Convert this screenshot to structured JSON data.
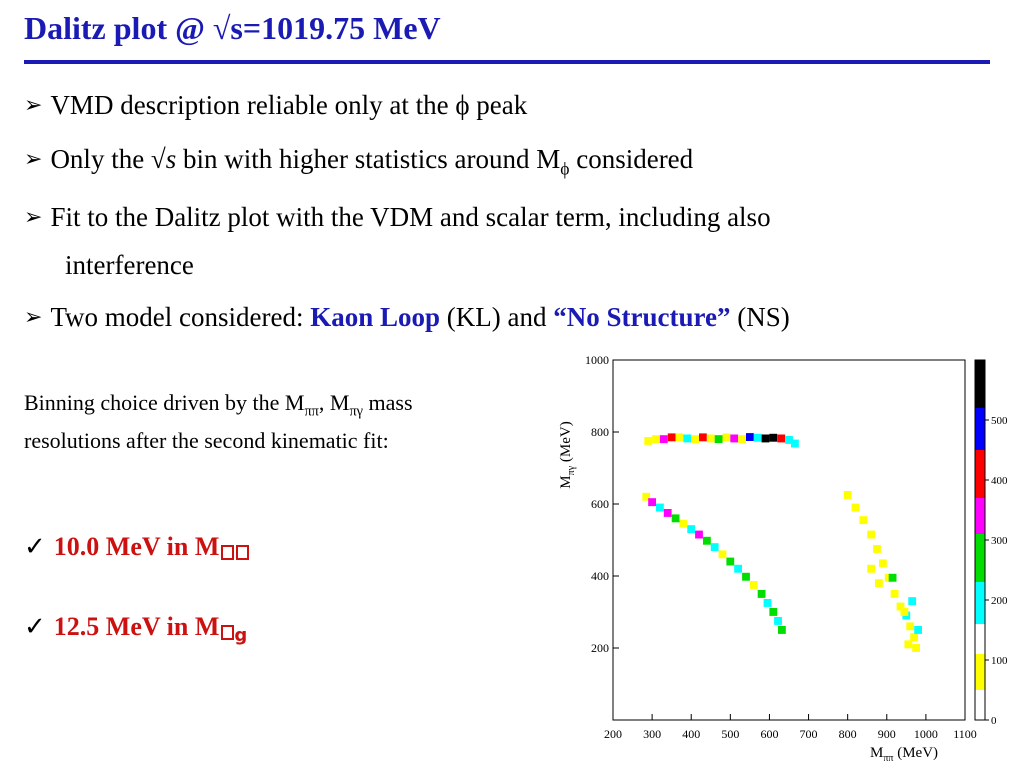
{
  "slide": {
    "title": "Dalitz plot @ √s=1019.75 MeV",
    "bullets": [
      {
        "text": "VMD description reliable only at the ϕ peak"
      },
      {
        "pre": "Only the √",
        "s": "s",
        "mid": " bin with higher statistics around M",
        "sub": "ϕ",
        "post": " considered"
      },
      {
        "line1": "Fit to the Dalitz plot with the VDM and scalar term, including also",
        "line2": "interference"
      },
      {
        "pre": "Two model considered: ",
        "kl": "Kaon Loop",
        "mid": " (KL) and ",
        "ns": "“No Structure”",
        "post": " (NS)"
      }
    ],
    "arrow_glyph": "➢",
    "note": {
      "pre": "Binning choice driven by the M",
      "sub1": "ππ",
      "mid": ", M",
      "sub2": "πγ",
      "post": " mass resolutions after the second kinematic fit:"
    },
    "checks": [
      {
        "mark": "✓",
        "text": "10.0 MeV in M",
        "sub_boxes": 2,
        "tail": ""
      },
      {
        "mark": "✓",
        "text": "12.5 MeV in M",
        "sub_boxes": 1,
        "tail": "g"
      }
    ],
    "colors": {
      "title": "#1a1ab4",
      "highlight": "#1a1ab4",
      "check_value": "#cc1111"
    }
  },
  "chart_data": {
    "type": "heatmap",
    "xlabel_main": "M",
    "xlabel_sub": "ππ",
    "xlabel_unit": " (MeV)",
    "ylabel_main": "M",
    "ylabel_sub": "πγ",
    "ylabel_unit": " (MeV)",
    "xlim": [
      200,
      1100
    ],
    "ylim": [
      0,
      1000
    ],
    "xticks": [
      200,
      300,
      400,
      500,
      600,
      700,
      800,
      900,
      1000,
      1100
    ],
    "yticks": [
      200,
      400,
      600,
      800,
      1000
    ],
    "color_scale": {
      "min": 0,
      "max": 600,
      "ticks": [
        0,
        100,
        200,
        300,
        400,
        500
      ],
      "bands": [
        {
          "from": 0,
          "to": 50,
          "color": "#ffffff"
        },
        {
          "from": 50,
          "to": 110,
          "color": "#ffff00"
        },
        {
          "from": 110,
          "to": 160,
          "color": "#ffffff"
        },
        {
          "from": 160,
          "to": 230,
          "color": "#00ffff"
        },
        {
          "from": 230,
          "to": 310,
          "color": "#00dd00"
        },
        {
          "from": 310,
          "to": 370,
          "color": "#ff00ff"
        },
        {
          "from": 370,
          "to": 450,
          "color": "#ff0000"
        },
        {
          "from": 450,
          "to": 520,
          "color": "#0000ff"
        },
        {
          "from": 520,
          "to": 600,
          "color": "#000000"
        }
      ]
    },
    "regions": [
      {
        "name": "horizontal band",
        "points": [
          [
            290,
            775,
            "#ffff00"
          ],
          [
            310,
            780,
            "#ffff00"
          ],
          [
            330,
            780,
            "#ff00ff"
          ],
          [
            350,
            785,
            "#ff0000"
          ],
          [
            370,
            785,
            "#ffff00"
          ],
          [
            390,
            782,
            "#00ffff"
          ],
          [
            410,
            780,
            "#ffff00"
          ],
          [
            430,
            785,
            "#ff0000"
          ],
          [
            450,
            782,
            "#ffff00"
          ],
          [
            470,
            780,
            "#00dd00"
          ],
          [
            490,
            785,
            "#ffff00"
          ],
          [
            510,
            782,
            "#ff00ff"
          ],
          [
            530,
            780,
            "#ffff00"
          ],
          [
            550,
            786,
            "#0000ff"
          ],
          [
            570,
            784,
            "#00ffff"
          ],
          [
            590,
            782,
            "#000000"
          ],
          [
            610,
            784,
            "#000000"
          ],
          [
            630,
            782,
            "#ff0000"
          ],
          [
            650,
            778,
            "#00ffff"
          ],
          [
            665,
            768,
            "#00ffff"
          ]
        ]
      },
      {
        "name": "lower diagonal band",
        "points": [
          [
            285,
            620,
            "#ffff00"
          ],
          [
            300,
            605,
            "#ff00ff"
          ],
          [
            320,
            590,
            "#00ffff"
          ],
          [
            340,
            575,
            "#ff00ff"
          ],
          [
            360,
            560,
            "#00dd00"
          ],
          [
            380,
            545,
            "#ffff00"
          ],
          [
            400,
            530,
            "#00ffff"
          ],
          [
            420,
            515,
            "#ff00ff"
          ],
          [
            440,
            498,
            "#00dd00"
          ],
          [
            460,
            480,
            "#00ffff"
          ],
          [
            480,
            460,
            "#ffff00"
          ],
          [
            500,
            440,
            "#00dd00"
          ],
          [
            520,
            420,
            "#00ffff"
          ],
          [
            540,
            398,
            "#00dd00"
          ],
          [
            560,
            375,
            "#ffff00"
          ],
          [
            580,
            350,
            "#00dd00"
          ],
          [
            595,
            325,
            "#00ffff"
          ],
          [
            610,
            300,
            "#00dd00"
          ],
          [
            622,
            275,
            "#00ffff"
          ],
          [
            632,
            250,
            "#00dd00"
          ]
        ]
      },
      {
        "name": "right band",
        "points": [
          [
            800,
            625,
            "#ffff00"
          ],
          [
            820,
            590,
            "#ffff00"
          ],
          [
            840,
            555,
            "#ffff00"
          ],
          [
            860,
            515,
            "#ffff00"
          ],
          [
            875,
            475,
            "#ffff00"
          ],
          [
            890,
            435,
            "#ffff00"
          ],
          [
            905,
            395,
            "#ffff00"
          ],
          [
            920,
            350,
            "#ffff00"
          ],
          [
            935,
            315,
            "#ffff00"
          ],
          [
            950,
            290,
            "#00ffff"
          ],
          [
            960,
            260,
            "#ffff00"
          ],
          [
            970,
            230,
            "#ffff00"
          ],
          [
            975,
            200,
            "#ffff00"
          ],
          [
            965,
            330,
            "#00ffff"
          ],
          [
            915,
            395,
            "#00dd00"
          ],
          [
            880,
            380,
            "#ffff00"
          ],
          [
            860,
            420,
            "#ffff00"
          ],
          [
            945,
            300,
            "#ffff00"
          ],
          [
            980,
            250,
            "#00ffff"
          ],
          [
            955,
            210,
            "#ffff00"
          ]
        ]
      }
    ]
  }
}
